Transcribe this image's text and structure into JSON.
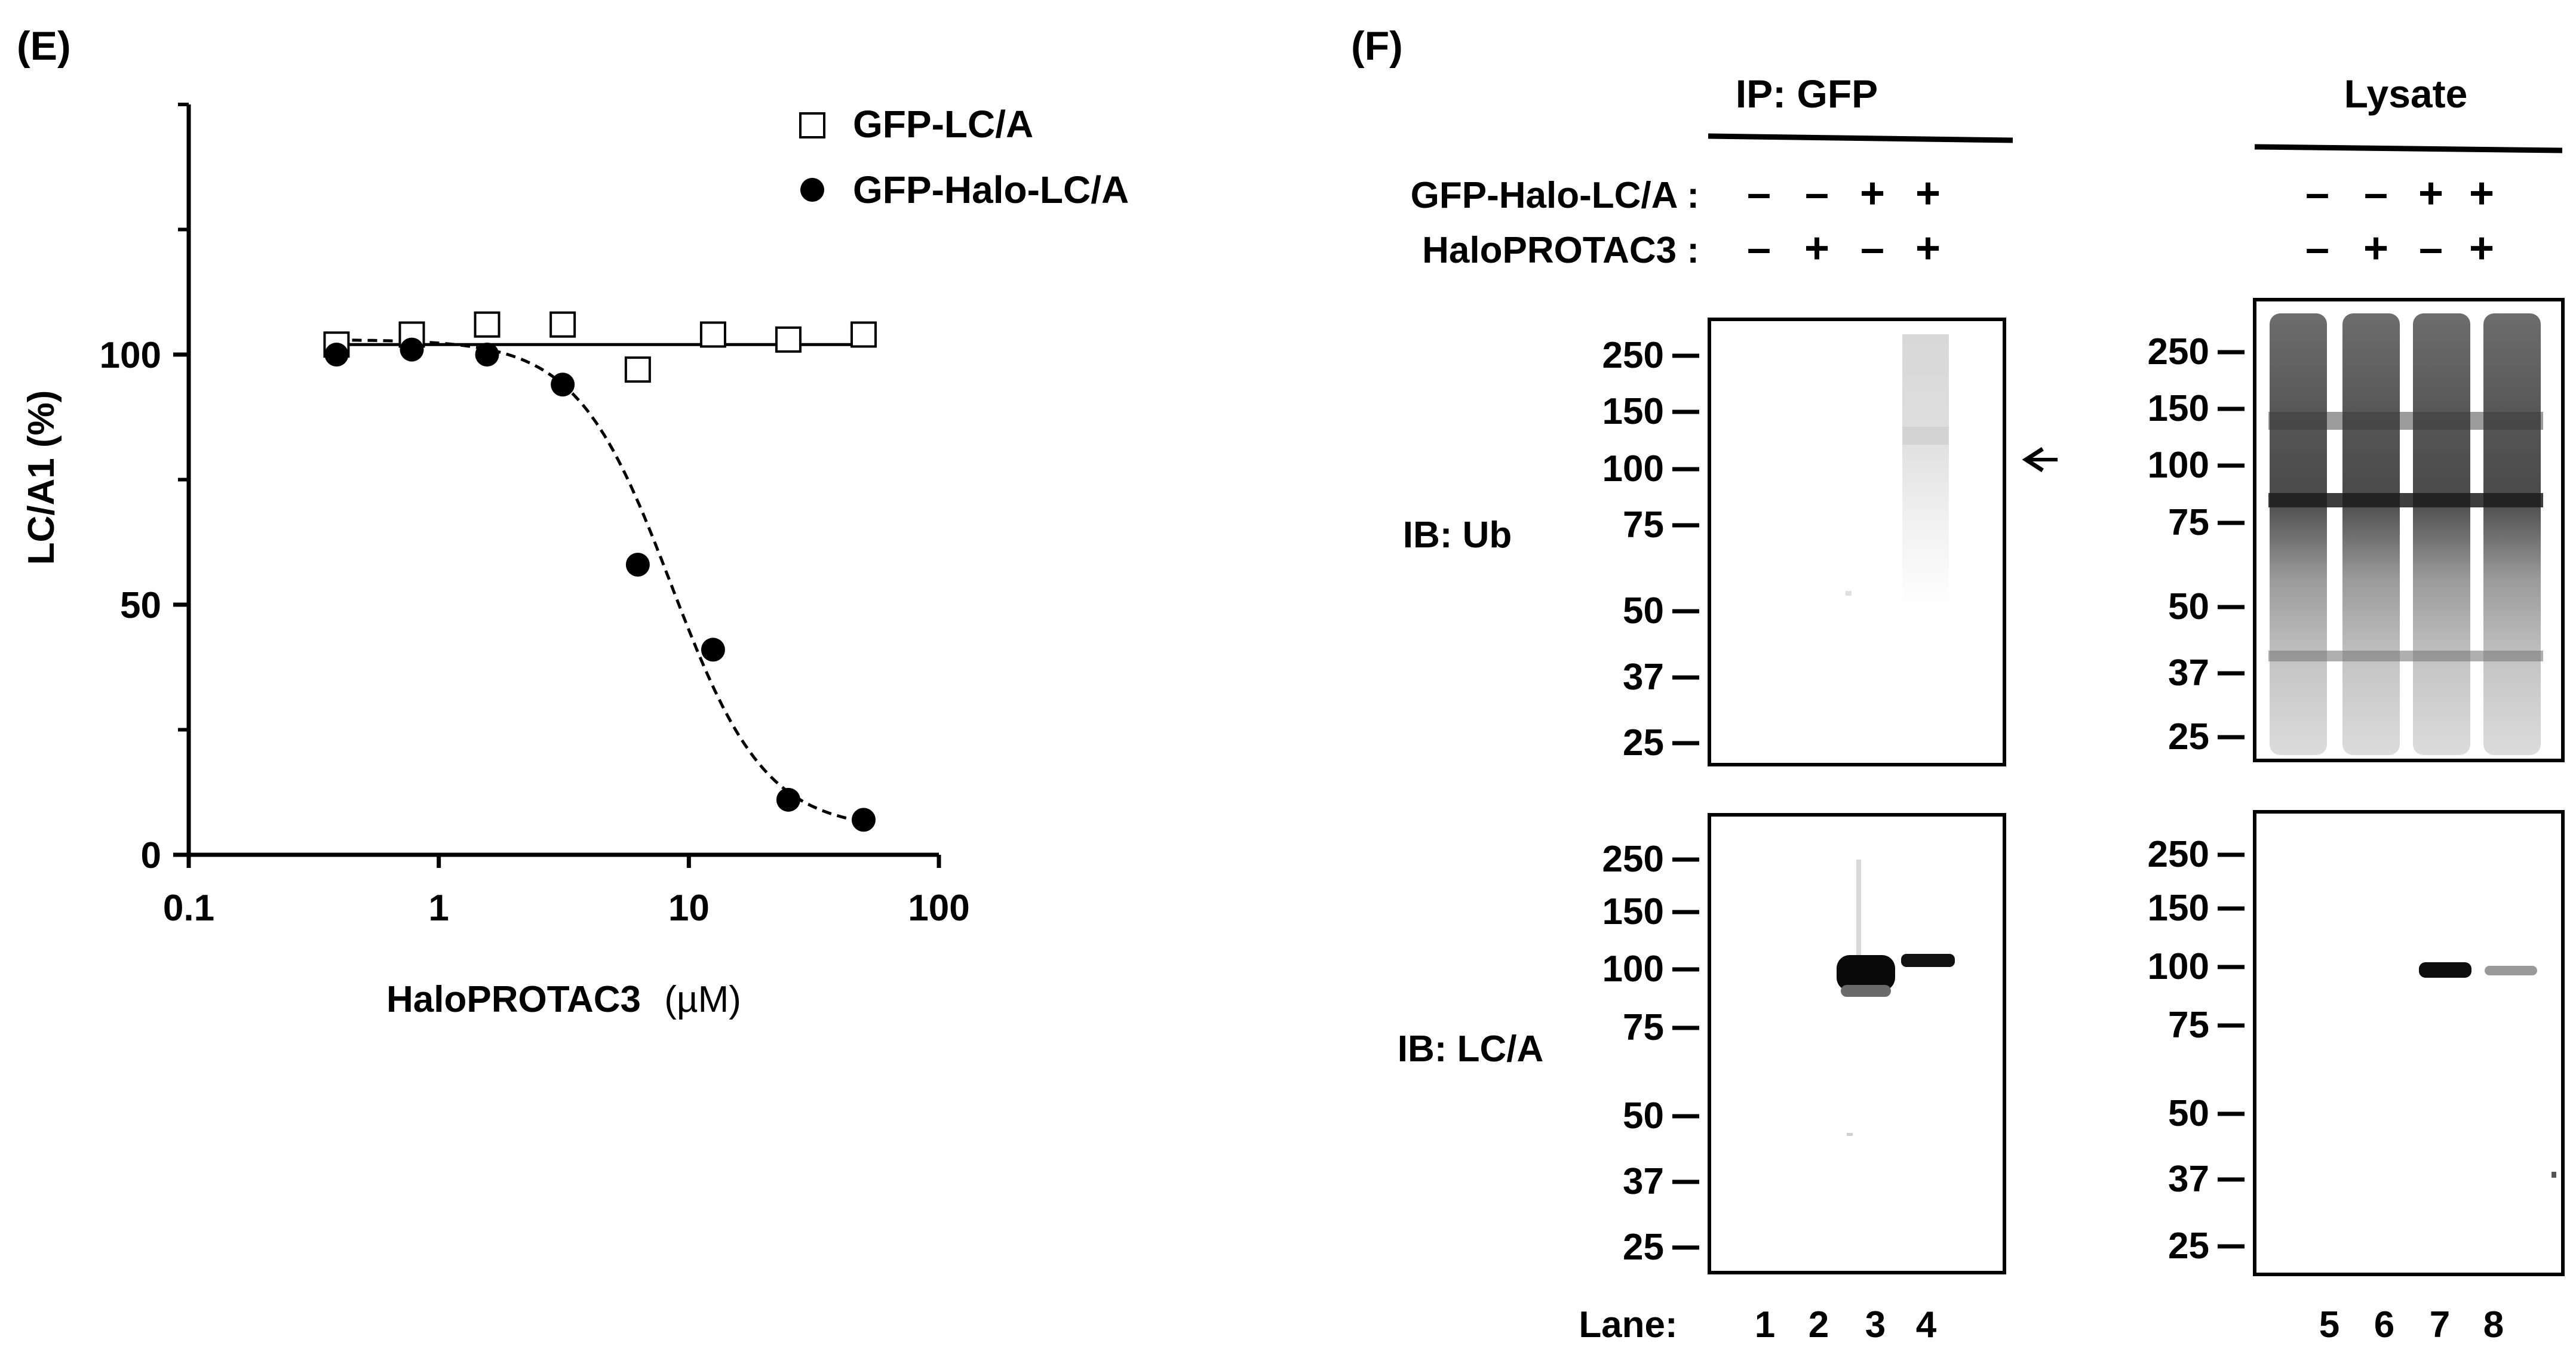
{
  "panel_e": {
    "label": "(E)",
    "legend": [
      {
        "name": "GFP-LC/A",
        "marker": "open-square"
      },
      {
        "name": "GFP-Halo-LC/A",
        "marker": "filled-circle"
      }
    ],
    "xlabel_prefix": "HaloPROTAC3",
    "xlabel_unit": "(µM)",
    "ylabel": "LC/A1 (%)"
  },
  "chart_data": {
    "type": "scatter",
    "title": "",
    "xlabel": "HaloPROTAC3 (µM)",
    "ylabel": "LC/A1 (%)",
    "xscale": "log",
    "xlim": [
      0.1,
      100
    ],
    "ylim": [
      0,
      150
    ],
    "xticks": [
      0.1,
      1,
      10,
      100
    ],
    "xtick_labels": [
      "0.1",
      "1",
      "10",
      "100"
    ],
    "yticks": [
      0,
      50,
      100
    ],
    "ytick_labels": [
      "0",
      "50",
      "100"
    ],
    "grid": false,
    "legend_position": "top-right",
    "series": [
      {
        "name": "GFP-LC/A",
        "marker": "open-square",
        "fit": "solid-flat",
        "x": [
          0.39,
          0.78,
          1.56,
          3.13,
          6.25,
          12.5,
          25,
          50
        ],
        "y": [
          102,
          104,
          106,
          106,
          97,
          104,
          103,
          104
        ],
        "fit_y": 102
      },
      {
        "name": "GFP-Halo-LC/A",
        "marker": "filled-circle",
        "fit": "dashed-sigmoid",
        "x": [
          0.39,
          0.78,
          1.56,
          3.13,
          6.25,
          12.5,
          25,
          50
        ],
        "y": [
          100,
          101,
          100,
          94,
          58,
          41,
          11,
          7
        ],
        "fit_top": 103,
        "fit_bottom": 5,
        "fit_ic50": 8.5,
        "fit_hill": 2.3
      }
    ]
  },
  "panel_f": {
    "label": "(F)",
    "ip_header": "IP: GFP",
    "lysate_header": "Lysate",
    "row_labels": [
      "GFP-Halo-LC/A :",
      "HaloPROTAC3 :"
    ],
    "ip_signs": [
      [
        "–",
        "–",
        "+",
        "+"
      ],
      [
        "–",
        "+",
        "–",
        "+"
      ]
    ],
    "lysate_signs": [
      [
        "–",
        "–",
        "+",
        "+"
      ],
      [
        "–",
        "+",
        "–",
        "+"
      ]
    ],
    "blot_labels": [
      "IB: Ub",
      "IB: LC/A"
    ],
    "markers": [
      "250",
      "150",
      "100",
      "75",
      "50",
      "37",
      "25"
    ],
    "lane_label": "Lane:",
    "ip_lanes": [
      "1",
      "2",
      "3",
      "4"
    ],
    "lysate_lanes": [
      "5",
      "6",
      "7",
      "8"
    ],
    "arrow_annotation": "arrow pointing to ubiquitinated band, lane 4"
  }
}
